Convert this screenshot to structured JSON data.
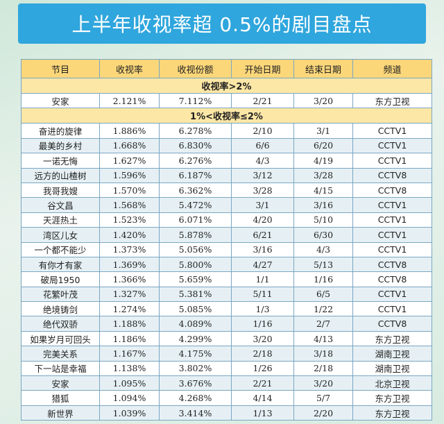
{
  "title": "上半年收视率超 0.5%的剧目盘点",
  "headers": [
    "节目",
    "收视率",
    "收视份额",
    "开始日期",
    "结束日期",
    "频道"
  ],
  "sections": [
    {
      "label": "收视率>2%",
      "rows": [
        [
          "安家",
          "2.121%",
          "7.112%",
          "2/21",
          "3/20",
          "东方卫视"
        ]
      ]
    },
    {
      "label": "1%<收视率≤2%",
      "rows": [
        [
          "奋进的旋律",
          "1.886%",
          "6.278%",
          "2/10",
          "3/1",
          "CCTV1"
        ],
        [
          "最美的乡村",
          "1.668%",
          "6.830%",
          "6/6",
          "6/20",
          "CCTV1"
        ],
        [
          "一诺无悔",
          "1.627%",
          "6.276%",
          "4/3",
          "4/19",
          "CCTV1"
        ],
        [
          "远方的山楂树",
          "1.596%",
          "6.187%",
          "3/12",
          "3/28",
          "CCTV8"
        ],
        [
          "我哥我嫂",
          "1.570%",
          "6.362%",
          "3/28",
          "4/15",
          "CCTV8"
        ],
        [
          "谷文昌",
          "1.568%",
          "5.472%",
          "3/1",
          "3/16",
          "CCTV1"
        ],
        [
          "天涯热土",
          "1.523%",
          "6.071%",
          "4/20",
          "5/10",
          "CCTV1"
        ],
        [
          "湾区儿女",
          "1.420%",
          "5.878%",
          "6/21",
          "6/30",
          "CCTV1"
        ],
        [
          "一个都不能少",
          "1.373%",
          "5.056%",
          "3/16",
          "4/3",
          "CCTV1"
        ],
        [
          "有你才有家",
          "1.369%",
          "5.800%",
          "4/27",
          "5/13",
          "CCTV8"
        ],
        [
          "破局1950",
          "1.366%",
          "5.659%",
          "1/1",
          "1/16",
          "CCTV8"
        ],
        [
          "花繁叶茂",
          "1.327%",
          "5.381%",
          "5/11",
          "6/5",
          "CCTV1"
        ],
        [
          "绝境铸剑",
          "1.274%",
          "5.085%",
          "1/3",
          "1/22",
          "CCTV1"
        ],
        [
          "绝代双骄",
          "1.188%",
          "4.089%",
          "1/16",
          "2/7",
          "CCTV8"
        ],
        [
          "如果岁月可回头",
          "1.186%",
          "4.299%",
          "3/20",
          "4/13",
          "东方卫视"
        ],
        [
          "完美关系",
          "1.167%",
          "4.175%",
          "2/18",
          "3/18",
          "湖南卫视"
        ],
        [
          "下一站是幸福",
          "1.138%",
          "3.802%",
          "1/26",
          "2/18",
          "湖南卫视"
        ],
        [
          "安家",
          "1.095%",
          "3.676%",
          "2/21",
          "3/20",
          "北京卫视"
        ],
        [
          "猎狐",
          "1.094%",
          "4.268%",
          "4/14",
          "5/7",
          "东方卫视"
        ],
        [
          "新世界",
          "1.039%",
          "3.414%",
          "1/13",
          "2/20",
          "东方卫视"
        ]
      ]
    }
  ]
}
